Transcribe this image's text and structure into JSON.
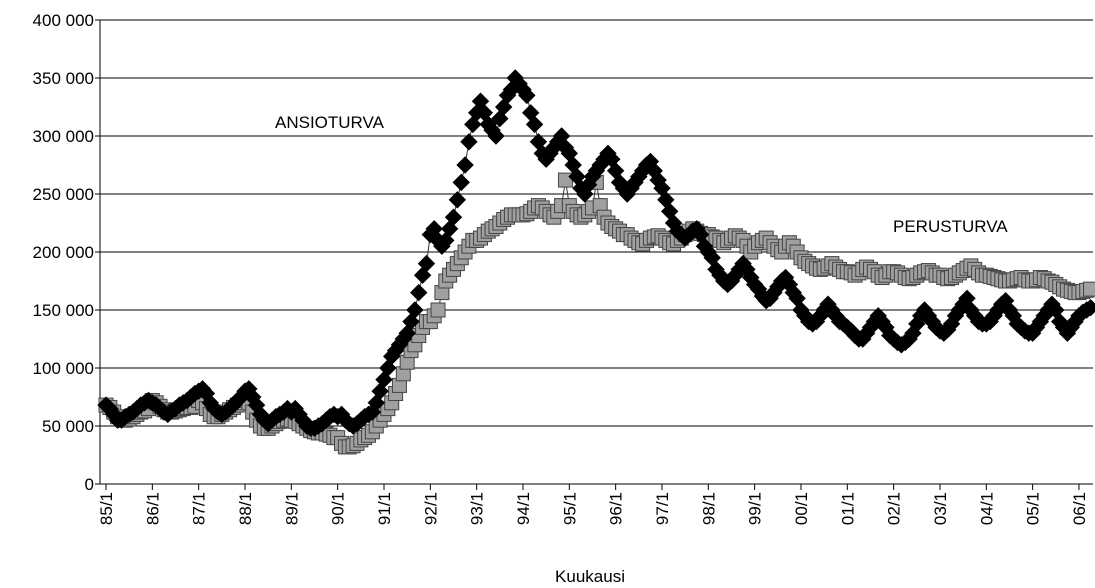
{
  "chart_data": {
    "type": "line",
    "x_label": "Kuukausi",
    "annotations": [
      "ANSIOTURVA",
      "PERUSTURVA"
    ],
    "ylim": [
      0,
      400000
    ],
    "yticks": [
      0,
      {
        "value": 50000,
        "label": "50 000"
      },
      {
        "value": 100000,
        "label": "100 000"
      },
      {
        "value": 150000,
        "label": "150 000"
      },
      {
        "value": 200000,
        "label": "200 000"
      },
      {
        "value": 250000,
        "label": "250 000"
      },
      {
        "value": 300000,
        "label": "300 000"
      },
      {
        "value": 350000,
        "label": "350 000"
      },
      {
        "value": 400000,
        "label": "400 000"
      }
    ],
    "grid": true,
    "categories": [
      "85/1",
      null,
      null,
      null,
      null,
      null,
      null,
      null,
      null,
      null,
      null,
      null,
      "86/1",
      null,
      null,
      null,
      null,
      null,
      null,
      null,
      null,
      null,
      null,
      null,
      "87/1",
      null,
      null,
      null,
      null,
      null,
      null,
      null,
      null,
      null,
      null,
      null,
      "88/1",
      null,
      null,
      null,
      null,
      null,
      null,
      null,
      null,
      null,
      null,
      null,
      "89/1",
      null,
      null,
      null,
      null,
      null,
      null,
      null,
      null,
      null,
      null,
      null,
      "90/1",
      null,
      null,
      null,
      null,
      null,
      null,
      null,
      null,
      null,
      null,
      null,
      "91/1",
      null,
      null,
      null,
      null,
      null,
      null,
      null,
      null,
      null,
      null,
      null,
      "92/1",
      null,
      null,
      null,
      null,
      null,
      null,
      null,
      null,
      null,
      null,
      null,
      "93/1",
      null,
      null,
      null,
      null,
      null,
      null,
      null,
      null,
      null,
      null,
      null,
      "94/1",
      null,
      null,
      null,
      null,
      null,
      null,
      null,
      null,
      null,
      null,
      null,
      "95/1",
      null,
      null,
      null,
      null,
      null,
      null,
      null,
      null,
      null,
      null,
      null,
      "96/1",
      null,
      null,
      null,
      null,
      null,
      null,
      null,
      null,
      null,
      null,
      null,
      "97/1",
      null,
      null,
      null,
      null,
      null,
      null,
      null,
      null,
      null,
      null,
      null,
      "98/1",
      null,
      null,
      null,
      null,
      null,
      null,
      null,
      null,
      null,
      null,
      null,
      "99/1",
      null,
      null,
      null,
      null,
      null,
      null,
      null,
      null,
      null,
      null,
      null,
      "00/1",
      null,
      null,
      null,
      null,
      null,
      null,
      null,
      null,
      null,
      null,
      null,
      "01/1",
      null,
      null,
      null,
      null,
      null,
      null,
      null,
      null,
      null,
      null,
      null,
      "02/1",
      null,
      null,
      null,
      null,
      null,
      null,
      null,
      null,
      null,
      null,
      null,
      "03/1",
      null,
      null,
      null,
      null,
      null,
      null,
      null,
      null,
      null,
      null,
      null,
      "04/1",
      null,
      null,
      null,
      null,
      null,
      null,
      null,
      null,
      null,
      null,
      null,
      "05/1",
      null,
      null,
      null,
      null,
      null,
      null,
      null,
      null,
      null,
      null,
      null,
      "06/1",
      null,
      null,
      null
    ],
    "series": [
      {
        "name": "PERUSTURVA",
        "color": "#a0a0a0",
        "marker": "square",
        "values": [
          68000,
          66000,
          62000,
          58000,
          56000,
          55000,
          56000,
          58000,
          60000,
          62000,
          63000,
          65000,
          72000,
          70000,
          67000,
          64000,
          62000,
          62000,
          63000,
          64000,
          65000,
          66000,
          66000,
          67000,
          72000,
          70000,
          65000,
          60000,
          58000,
          58000,
          60000,
          62000,
          64000,
          66000,
          68000,
          70000,
          72000,
          70000,
          62000,
          55000,
          50000,
          48000,
          48000,
          50000,
          52000,
          54000,
          55000,
          56000,
          55000,
          54000,
          52000,
          50000,
          48000,
          46000,
          45000,
          44000,
          44000,
          43000,
          42000,
          40000,
          40000,
          35000,
          32000,
          32000,
          33000,
          35000,
          38000,
          40000,
          42000,
          45000,
          50000,
          55000,
          60000,
          65000,
          70000,
          78000,
          85000,
          95000,
          105000,
          115000,
          120000,
          128000,
          135000,
          140000,
          140000,
          145000,
          150000,
          165000,
          175000,
          180000,
          185000,
          190000,
          195000,
          200000,
          205000,
          210000,
          210000,
          212000,
          215000,
          218000,
          220000,
          222000,
          225000,
          228000,
          230000,
          232000,
          232000,
          232000,
          232000,
          233000,
          235000,
          238000,
          240000,
          238000,
          235000,
          232000,
          230000,
          235000,
          240000,
          262000,
          240000,
          235000,
          232000,
          230000,
          232000,
          235000,
          238000,
          260000,
          240000,
          230000,
          225000,
          222000,
          220000,
          218000,
          215000,
          215000,
          212000,
          210000,
          208000,
          207000,
          210000,
          212000,
          213000,
          214000,
          212000,
          210000,
          208000,
          207000,
          210000,
          212000,
          215000,
          218000,
          220000,
          218000,
          216000,
          215000,
          215000,
          213000,
          212000,
          210000,
          208000,
          210000,
          212000,
          214000,
          212000,
          210000,
          205000,
          200000,
          205000,
          208000,
          210000,
          212000,
          208000,
          205000,
          202000,
          200000,
          205000,
          208000,
          205000,
          200000,
          195000,
          192000,
          190000,
          188000,
          186000,
          185000,
          186000,
          188000,
          190000,
          187000,
          185000,
          183000,
          183000,
          182000,
          180000,
          182000,
          185000,
          187000,
          185000,
          183000,
          180000,
          178000,
          180000,
          183000,
          183000,
          182000,
          180000,
          178000,
          177000,
          178000,
          180000,
          182000,
          183000,
          184000,
          182000,
          180000,
          180000,
          178000,
          177000,
          178000,
          180000,
          182000,
          184000,
          186000,
          188000,
          185000,
          182000,
          180000,
          180000,
          179000,
          178000,
          177000,
          176000,
          175000,
          175000,
          176000,
          177000,
          178000,
          176000,
          175000,
          175000,
          176000,
          178000,
          177000,
          175000,
          174000,
          172000,
          170000,
          168000,
          167000,
          166000,
          165000,
          165000,
          166000,
          167000,
          168000
        ]
      },
      {
        "name": "ANSIOTURVA",
        "color": "#000000",
        "marker": "diamond",
        "values": [
          68000,
          65000,
          60000,
          55000,
          55000,
          58000,
          60000,
          62000,
          65000,
          68000,
          70000,
          72000,
          70000,
          68000,
          65000,
          62000,
          60000,
          63000,
          65000,
          68000,
          70000,
          72000,
          75000,
          78000,
          80000,
          82000,
          78000,
          70000,
          65000,
          62000,
          60000,
          62000,
          65000,
          68000,
          72000,
          75000,
          80000,
          82000,
          75000,
          68000,
          60000,
          55000,
          52000,
          55000,
          58000,
          60000,
          62000,
          65000,
          62000,
          65000,
          60000,
          55000,
          50000,
          48000,
          48000,
          50000,
          52000,
          55000,
          58000,
          60000,
          58000,
          60000,
          55000,
          52000,
          50000,
          52000,
          55000,
          58000,
          60000,
          62000,
          70000,
          80000,
          90000,
          100000,
          110000,
          115000,
          120000,
          125000,
          130000,
          140000,
          150000,
          165000,
          180000,
          190000,
          215000,
          220000,
          210000,
          205000,
          210000,
          220000,
          230000,
          245000,
          260000,
          275000,
          295000,
          310000,
          320000,
          330000,
          320000,
          310000,
          305000,
          300000,
          315000,
          325000,
          335000,
          340000,
          350000,
          345000,
          340000,
          335000,
          320000,
          310000,
          295000,
          285000,
          280000,
          285000,
          290000,
          295000,
          300000,
          290000,
          285000,
          275000,
          265000,
          255000,
          250000,
          258000,
          265000,
          270000,
          275000,
          280000,
          285000,
          280000,
          270000,
          260000,
          255000,
          250000,
          255000,
          260000,
          265000,
          270000,
          275000,
          278000,
          270000,
          262000,
          255000,
          245000,
          235000,
          225000,
          218000,
          215000,
          212000,
          215000,
          218000,
          220000,
          215000,
          205000,
          200000,
          195000,
          185000,
          180000,
          175000,
          172000,
          175000,
          180000,
          185000,
          190000,
          185000,
          178000,
          172000,
          168000,
          162000,
          158000,
          160000,
          165000,
          170000,
          175000,
          178000,
          172000,
          165000,
          160000,
          150000,
          145000,
          140000,
          138000,
          140000,
          145000,
          150000,
          155000,
          150000,
          145000,
          140000,
          138000,
          135000,
          132000,
          128000,
          125000,
          125000,
          130000,
          135000,
          140000,
          145000,
          140000,
          135000,
          128000,
          125000,
          122000,
          120000,
          122000,
          125000,
          130000,
          138000,
          145000,
          150000,
          145000,
          140000,
          135000,
          132000,
          130000,
          133000,
          138000,
          145000,
          150000,
          155000,
          160000,
          150000,
          145000,
          140000,
          138000,
          138000,
          140000,
          145000,
          150000,
          155000,
          158000,
          150000,
          145000,
          138000,
          135000,
          132000,
          130000,
          130000,
          135000,
          140000,
          145000,
          150000,
          155000,
          150000,
          140000,
          135000,
          130000,
          135000,
          140000,
          145000,
          148000,
          150000,
          152000
        ]
      }
    ]
  }
}
